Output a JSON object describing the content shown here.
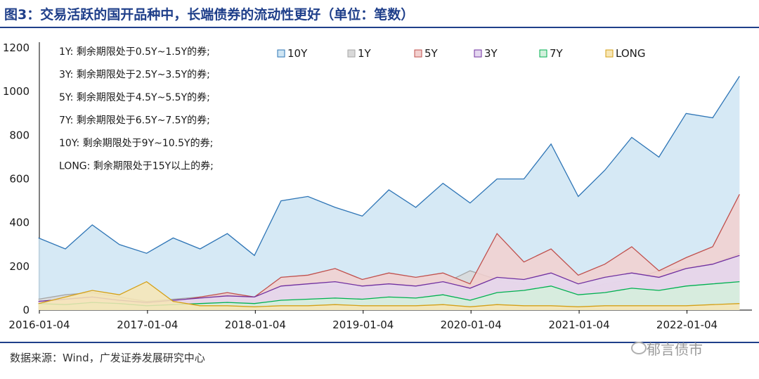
{
  "title": "图3：交易活跃的国开品种中，长端债券的流动性更好（单位：笔数）",
  "source": "数据来源：Wind，广发证券发展研究中心",
  "watermark": "郁言债市",
  "notes": [
    "1Y: 剩余期限处于0.5Y~1.5Y的券;",
    "3Y: 剩余期限处于2.5Y~3.5Y的券;",
    "5Y: 剩余期限处于4.5Y~5.5Y的券;",
    "7Y: 剩余期限处于6.5Y~7.5Y的券;",
    "10Y: 剩余期限处于9Y~10.5Y的券;",
    "LONG: 剩余期限处于15Y以上的券;"
  ],
  "chart_data": {
    "type": "area",
    "title": "",
    "xlabel": "",
    "ylabel": "",
    "ylim": [
      0,
      1200
    ],
    "yticks": [
      0,
      200,
      400,
      600,
      800,
      1000,
      1200
    ],
    "xlim": [
      "2016-01-04",
      "2022-08-12"
    ],
    "xtick_labels": [
      "2016-01-04",
      "2017-01-04",
      "2018-01-04",
      "2019-01-04",
      "2020-01-04",
      "2021-01-04",
      "2022-01-04"
    ],
    "legend_position": "top",
    "grid": false,
    "x": [
      "2016-01",
      "2016-04",
      "2016-07",
      "2016-10",
      "2017-01",
      "2017-04",
      "2017-07",
      "2017-10",
      "2018-01",
      "2018-04",
      "2018-07",
      "2018-10",
      "2019-01",
      "2019-04",
      "2019-07",
      "2019-10",
      "2020-01",
      "2020-04",
      "2020-07",
      "2020-10",
      "2021-01",
      "2021-04",
      "2021-07",
      "2021-10",
      "2022-01",
      "2022-04",
      "2022-07"
    ],
    "series": [
      {
        "name": "10Y",
        "color": "#2e75b6",
        "fill": "#cfe5f3",
        "values": [
          330,
          280,
          390,
          300,
          260,
          330,
          280,
          350,
          250,
          500,
          520,
          470,
          430,
          550,
          470,
          580,
          490,
          600,
          600,
          760,
          520,
          640,
          790,
          700,
          900,
          880,
          1070
        ]
      },
      {
        "name": "1Y",
        "color": "#a6a6a6",
        "fill": "#d9d9d9",
        "values": [
          50,
          70,
          80,
          60,
          40,
          50,
          60,
          70,
          60,
          90,
          100,
          110,
          90,
          110,
          100,
          120,
          180,
          140,
          120,
          110,
          90,
          120,
          140,
          180,
          190,
          210,
          260
        ]
      },
      {
        "name": "5Y",
        "color": "#c0504d",
        "fill": "#f2d0cf",
        "values": [
          40,
          50,
          60,
          40,
          30,
          40,
          60,
          80,
          60,
          150,
          160,
          190,
          140,
          170,
          150,
          170,
          120,
          350,
          220,
          280,
          160,
          210,
          290,
          180,
          240,
          290,
          530
        ]
      },
      {
        "name": "3Y",
        "color": "#7030a0",
        "fill": "#e4d7ef",
        "values": [
          40,
          50,
          60,
          45,
          35,
          45,
          55,
          65,
          60,
          110,
          120,
          130,
          110,
          120,
          110,
          130,
          100,
          150,
          140,
          170,
          120,
          150,
          170,
          150,
          190,
          210,
          250
        ]
      },
      {
        "name": "7Y",
        "color": "#00b050",
        "fill": "#d3f0dc",
        "values": [
          30,
          25,
          35,
          30,
          20,
          25,
          30,
          35,
          30,
          45,
          50,
          55,
          50,
          60,
          55,
          70,
          45,
          80,
          90,
          110,
          70,
          80,
          100,
          90,
          110,
          120,
          130
        ]
      },
      {
        "name": "LONG",
        "color": "#d4a017",
        "fill": "#f7e6b5",
        "values": [
          30,
          60,
          90,
          70,
          130,
          40,
          20,
          20,
          15,
          20,
          20,
          25,
          20,
          20,
          20,
          25,
          15,
          25,
          20,
          20,
          15,
          20,
          20,
          20,
          20,
          25,
          30
        ]
      }
    ]
  }
}
